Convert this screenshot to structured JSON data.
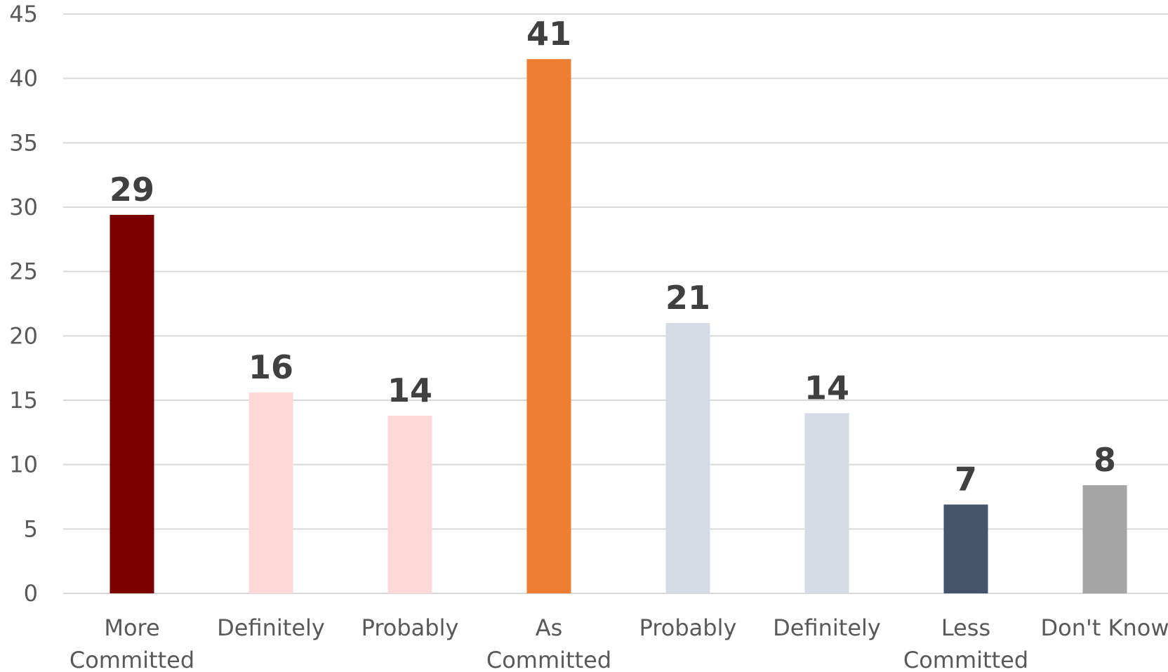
{
  "chart_data": {
    "type": "bar",
    "title": "",
    "xlabel": "",
    "ylabel": "",
    "ylim": [
      0,
      45
    ],
    "y_ticks": [
      0,
      5,
      10,
      15,
      20,
      25,
      30,
      35,
      40,
      45
    ],
    "grid": true,
    "legend": "none",
    "categories": [
      [
        "More",
        "Committed"
      ],
      [
        "Definitely"
      ],
      [
        "Probably"
      ],
      [
        "As",
        "Committed"
      ],
      [
        "Probably"
      ],
      [
        "Definitely"
      ],
      [
        "Less",
        "Committed"
      ],
      [
        "Don't Know"
      ]
    ],
    "values": [
      29.4,
      15.6,
      13.8,
      41.5,
      21.0,
      14.0,
      6.9,
      8.4
    ],
    "data_labels": [
      "29",
      "16",
      "14",
      "41",
      "21",
      "14",
      "7",
      "8"
    ],
    "bar_colors": [
      "#7b0000",
      "#ffd8d8",
      "#ffd8d8",
      "#ed7d31",
      "#d6dce5",
      "#d6dce5",
      "#44546a",
      "#a5a5a5"
    ]
  }
}
